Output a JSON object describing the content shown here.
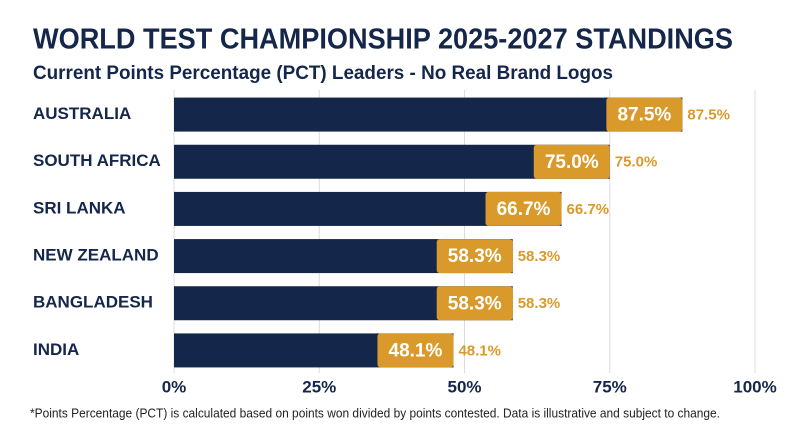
{
  "chart_data": {
    "type": "hbar",
    "title": "WORLD TEST CHAMPIONSHIP 2025-2027 STANDINGS",
    "subtitle": "Current Points Percentage (PCT) Leaders - No Real Brand Logos",
    "footnote": "*Points Percentage (PCT) is calculated based on points won divided by points contested. Data is illustrative and subject to change.",
    "categories": [
      "AUSTRALIA",
      "SOUTH AFRICA",
      "SRI LANKA",
      "NEW ZEALAND",
      "BANGLADESH",
      "INDIA"
    ],
    "values": [
      87.5,
      75.0,
      66.7,
      58.3,
      58.3,
      48.1
    ],
    "value_labels": [
      "87.5%",
      "75.0%",
      "66.7%",
      "58.3%",
      "58.3%",
      "48.1%"
    ],
    "color": "#14264a",
    "accent_color": "#d99a2b",
    "xlim": [
      0,
      100
    ],
    "xticks": [
      {
        "value": 0,
        "label": "0%"
      },
      {
        "value": 25,
        "label": "25%"
      },
      {
        "value": 50,
        "label": "50%"
      },
      {
        "value": 75,
        "label": "75%"
      },
      {
        "value": 100,
        "label": "100%"
      }
    ],
    "grid": true
  }
}
